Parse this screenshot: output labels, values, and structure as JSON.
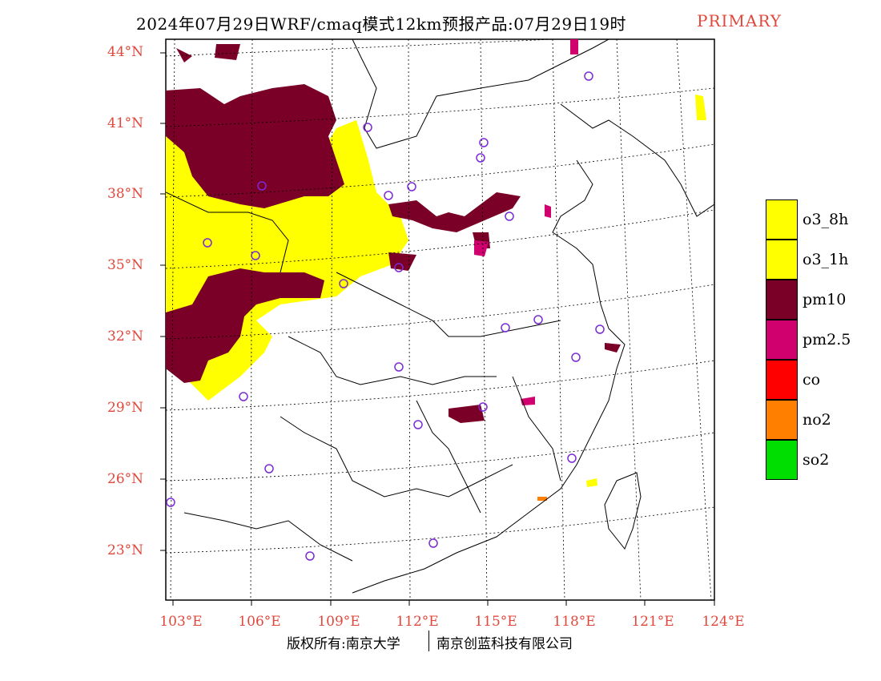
{
  "title": {
    "main": "2024年07月29日WRF/cmaq模式12km预报产品:07月29日19时",
    "tag": "PRIMARY"
  },
  "colors": {
    "o3_8h": "#ffff00",
    "o3_1h": "#ffff00",
    "pm10": "#7a0028",
    "pm2_5": "#d0006f",
    "co": "#ff0000",
    "no2": "#ff7f00",
    "so2": "#00dd00",
    "label_red": "#e0483c",
    "station_circle": "#7a2bd6"
  },
  "lat_labels": [
    "44°N",
    "41°N",
    "38°N",
    "35°N",
    "32°N",
    "29°N",
    "26°N",
    "23°N"
  ],
  "lon_labels": [
    "103°E",
    "106°E",
    "109°E",
    "112°E",
    "115°E",
    "118°E",
    "121°E",
    "124°E"
  ],
  "legend": [
    {
      "label": "o3_8h",
      "color": "#ffff00"
    },
    {
      "label": "o3_1h",
      "color": "#ffff00"
    },
    {
      "label": "pm10",
      "color": "#7a0028"
    },
    {
      "label": "pm2.5",
      "color": "#d0006f"
    },
    {
      "label": "co",
      "color": "#ff0000"
    },
    {
      "label": "no2",
      "color": "#ff7f00"
    },
    {
      "label": "so2",
      "color": "#00dd00"
    }
  ],
  "copyright": {
    "left": "版权所有:南京大学",
    "right": "南京创蓝科技有限公司"
  }
}
